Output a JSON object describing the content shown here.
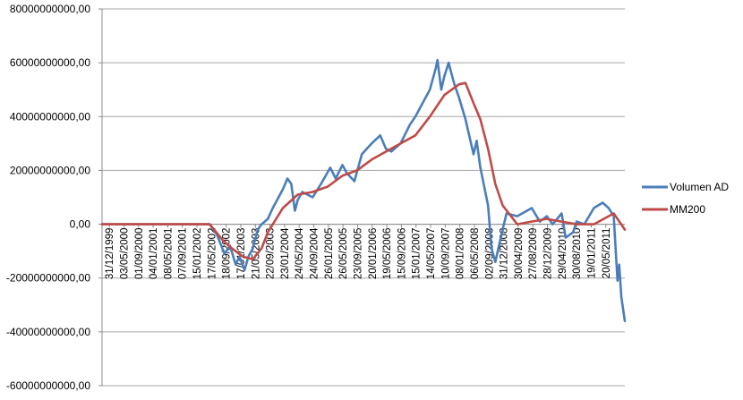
{
  "chart_data": {
    "type": "line",
    "title": "",
    "xlabel": "",
    "ylabel": "",
    "ylim": [
      -60000000000,
      80000000000
    ],
    "y_ticks": [
      80000000000,
      60000000000,
      40000000000,
      20000000000,
      0,
      -20000000000,
      -40000000000,
      -60000000000
    ],
    "y_tick_labels": [
      "80000000000,00",
      "60000000000,00",
      "40000000000,00",
      "20000000000,00",
      "0,00",
      "-20000000000,00",
      "-40000000000,00",
      "-60000000000,00"
    ],
    "x_tick_labels": [
      "31/12/1999",
      "03/05/2000",
      "01/09/2000",
      "04/01/2001",
      "08/05/2001",
      "07/09/2001",
      "15/01/2002",
      "17/05/2002",
      "18/09/2002",
      "17/01/2003",
      "21/05/2003",
      "22/09/2003",
      "23/01/2004",
      "24/05/2004",
      "24/09/2004",
      "26/01/2005",
      "26/05/2005",
      "23/09/2005",
      "20/01/2006",
      "19/05/2006",
      "15/09/2006",
      "15/01/2007",
      "14/05/2007",
      "10/09/2007",
      "08/01/2008",
      "06/05/2008",
      "02/09/2008",
      "31/12/2008",
      "30/04/2009",
      "27/08/2009",
      "28/12/2009",
      "29/04/2010",
      "30/08/2010",
      "19/01/2011",
      "20/05/2011"
    ],
    "x_range": [
      "31/12/1999",
      "30/09/2011"
    ],
    "grid": true,
    "legend": "right",
    "series": [
      {
        "name": "Volumen AD",
        "color": "#4a7ebb",
        "points": [
          [
            "31/12/1999",
            0
          ],
          [
            "01/06/2002",
            0
          ],
          [
            "01/08/2002",
            -4000000000
          ],
          [
            "01/10/2002",
            -11000000000
          ],
          [
            "15/11/2002",
            -8000000000
          ],
          [
            "01/01/2003",
            -15000000000
          ],
          [
            "01/02/2003",
            -12000000000
          ],
          [
            "15/03/2003",
            -17000000000
          ],
          [
            "15/04/2003",
            -12000000000
          ],
          [
            "21/05/2003",
            -9000000000
          ],
          [
            "01/07/2003",
            -2000000000
          ],
          [
            "01/08/2003",
            0
          ],
          [
            "22/09/2003",
            2000000000
          ],
          [
            "01/11/2003",
            6000000000
          ],
          [
            "23/01/2004",
            13000000000
          ],
          [
            "01/03/2004",
            17000000000
          ],
          [
            "01/04/2004",
            15000000000
          ],
          [
            "01/05/2004",
            5000000000
          ],
          [
            "24/05/2004",
            9000000000
          ],
          [
            "01/07/2004",
            12000000000
          ],
          [
            "24/09/2004",
            10000000000
          ],
          [
            "01/12/2004",
            15000000000
          ],
          [
            "15/02/2005",
            21000000000
          ],
          [
            "01/04/2005",
            17000000000
          ],
          [
            "26/05/2005",
            22000000000
          ],
          [
            "01/07/2005",
            19000000000
          ],
          [
            "01/09/2005",
            16000000000
          ],
          [
            "01/11/2005",
            26000000000
          ],
          [
            "20/01/2006",
            30000000000
          ],
          [
            "01/04/2006",
            33000000000
          ],
          [
            "19/05/2006",
            28000000000
          ],
          [
            "01/07/2006",
            27000000000
          ],
          [
            "15/09/2006",
            30000000000
          ],
          [
            "01/12/2006",
            37000000000
          ],
          [
            "15/01/2007",
            40000000000
          ],
          [
            "15/03/2007",
            45000000000
          ],
          [
            "14/05/2007",
            50000000000
          ],
          [
            "01/07/2007",
            58000000000
          ],
          [
            "15/07/2007",
            61000000000
          ],
          [
            "15/08/2007",
            50000000000
          ],
          [
            "10/09/2007",
            55000000000
          ],
          [
            "15/10/2007",
            60000000000
          ],
          [
            "01/11/2007",
            57000000000
          ],
          [
            "01/12/2007",
            52000000000
          ],
          [
            "08/01/2008",
            47000000000
          ],
          [
            "01/03/2008",
            39000000000
          ],
          [
            "06/05/2008",
            26000000000
          ],
          [
            "01/06/2008",
            31000000000
          ],
          [
            "01/07/2008",
            21000000000
          ],
          [
            "02/09/2008",
            7000000000
          ],
          [
            "01/10/2008",
            -9000000000
          ],
          [
            "01/11/2008",
            -14000000000
          ],
          [
            "31/12/2008",
            -2000000000
          ],
          [
            "01/02/2009",
            4000000000
          ],
          [
            "30/04/2009",
            3000000000
          ],
          [
            "27/08/2009",
            6000000000
          ],
          [
            "01/11/2009",
            1000000000
          ],
          [
            "28/12/2009",
            3000000000
          ],
          [
            "15/02/2010",
            0
          ],
          [
            "29/04/2010",
            4000000000
          ],
          [
            "01/06/2010",
            -5000000000
          ],
          [
            "01/08/2010",
            -3000000000
          ],
          [
            "30/08/2010",
            1000000000
          ],
          [
            "01/11/2010",
            0
          ],
          [
            "19/01/2011",
            6000000000
          ],
          [
            "01/04/2011",
            8000000000
          ],
          [
            "20/05/2011",
            6000000000
          ],
          [
            "01/07/2011",
            3000000000
          ],
          [
            "01/08/2011",
            -21000000000
          ],
          [
            "15/08/2011",
            -15000000000
          ],
          [
            "01/09/2011",
            -27000000000
          ],
          [
            "30/09/2011",
            -36000000000
          ]
        ]
      },
      {
        "name": "MM200",
        "color": "#be4b48",
        "points": [
          [
            "31/12/1999",
            0
          ],
          [
            "01/06/2002",
            0
          ],
          [
            "18/09/2002",
            -6000000000
          ],
          [
            "01/12/2002",
            -9000000000
          ],
          [
            "01/03/2003",
            -12000000000
          ],
          [
            "21/05/2003",
            -13000000000
          ],
          [
            "01/08/2003",
            -9000000000
          ],
          [
            "22/09/2003",
            -3000000000
          ],
          [
            "23/01/2004",
            6000000000
          ],
          [
            "24/05/2004",
            11000000000
          ],
          [
            "24/09/2004",
            12000000000
          ],
          [
            "26/01/2005",
            14000000000
          ],
          [
            "26/05/2005",
            18000000000
          ],
          [
            "23/09/2005",
            20000000000
          ],
          [
            "20/01/2006",
            24000000000
          ],
          [
            "19/05/2006",
            27000000000
          ],
          [
            "15/09/2006",
            30000000000
          ],
          [
            "15/01/2007",
            33000000000
          ],
          [
            "14/05/2007",
            40000000000
          ],
          [
            "10/09/2007",
            48000000000
          ],
          [
            "08/01/2008",
            52000000000
          ],
          [
            "01/03/2008",
            52500000000
          ],
          [
            "06/05/2008",
            45000000000
          ],
          [
            "01/07/2008",
            39000000000
          ],
          [
            "02/09/2008",
            28000000000
          ],
          [
            "01/11/2008",
            15000000000
          ],
          [
            "31/12/2008",
            7000000000
          ],
          [
            "30/04/2009",
            0
          ],
          [
            "27/08/2009",
            1000000000
          ],
          [
            "28/12/2009",
            2000000000
          ],
          [
            "29/04/2010",
            1000000000
          ],
          [
            "30/08/2010",
            0
          ],
          [
            "19/01/2011",
            0
          ],
          [
            "20/05/2011",
            3000000000
          ],
          [
            "01/07/2011",
            4000000000
          ],
          [
            "01/08/2011",
            2000000000
          ],
          [
            "30/09/2011",
            -2000000000
          ]
        ]
      }
    ]
  }
}
